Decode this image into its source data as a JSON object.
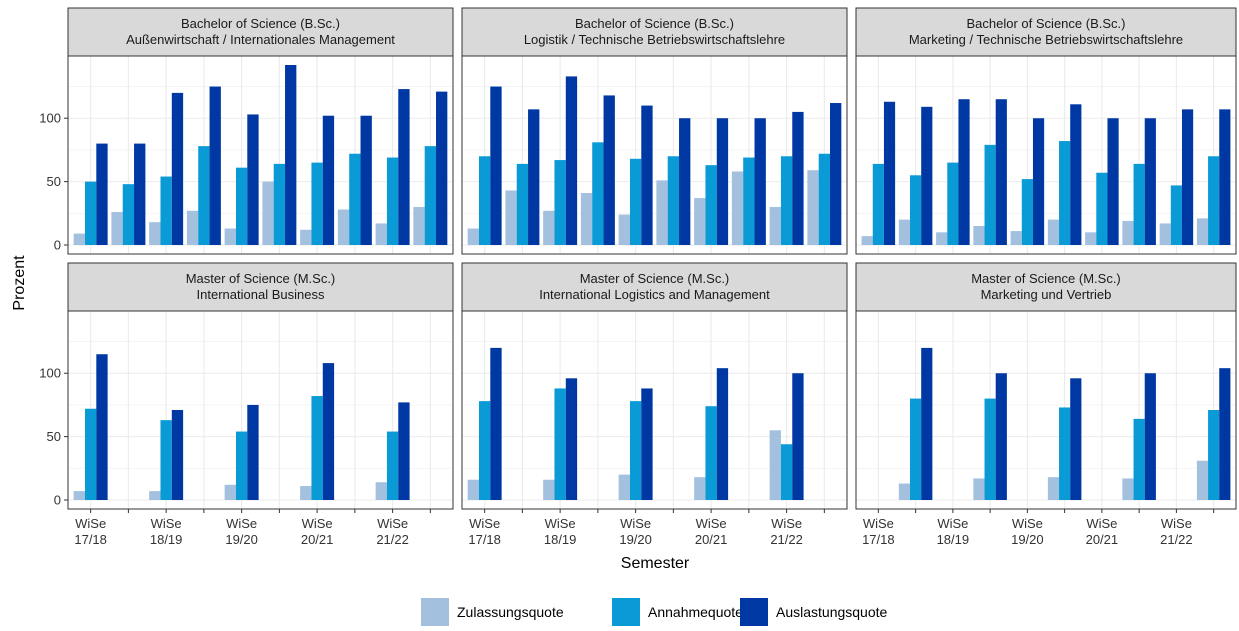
{
  "chart_data": {
    "type": "bar",
    "y_label": "Prozent",
    "x_label": "Semester",
    "categories": [
      "WiSe\n17/18",
      null,
      "WiSe\n18/19",
      null,
      "WiSe\n19/20",
      null,
      "WiSe\n20/21",
      null,
      "WiSe\n21/22",
      null
    ],
    "ylim": [
      -7.1,
      149.1
    ],
    "yticks": [
      0,
      50,
      100
    ],
    "minor_yticks": [
      25,
      75,
      125
    ],
    "grid": true,
    "legend": "bottom",
    "series": [
      {
        "name": "Zulassungsquote",
        "color": "#a3c0df"
      },
      {
        "name": "Annahmequote",
        "color": "#0a9ad6"
      },
      {
        "name": "Auslastungsquote",
        "color": "#0038a3"
      }
    ],
    "facets": [
      {
        "title": [
          "Bachelor of Science (B.Sc.)",
          "Außenwirtschaft / Internationales Management"
        ],
        "values": [
          [
            9,
            26,
            18,
            27,
            13,
            50,
            12,
            28,
            17,
            30
          ],
          [
            50,
            48,
            54,
            78,
            61,
            64,
            65,
            72,
            69,
            78
          ],
          [
            80,
            80,
            120,
            125,
            103,
            142,
            102,
            102,
            123,
            121
          ]
        ]
      },
      {
        "title": [
          "Bachelor of Science (B.Sc.)",
          "Logistik / Technische Betriebswirtschaftslehre"
        ],
        "values": [
          [
            13,
            43,
            27,
            41,
            24,
            51,
            37,
            58,
            30,
            59
          ],
          [
            70,
            64,
            67,
            81,
            68,
            70,
            63,
            69,
            70,
            72
          ],
          [
            125,
            107,
            133,
            118,
            110,
            100,
            100,
            100,
            105,
            112
          ]
        ]
      },
      {
        "title": [
          "Bachelor of Science (B.Sc.)",
          "Marketing / Technische Betriebswirtschaftslehre"
        ],
        "values": [
          [
            7,
            20,
            10,
            15,
            11,
            20,
            10,
            19,
            17,
            21
          ],
          [
            64,
            55,
            65,
            79,
            52,
            82,
            57,
            64,
            47,
            70
          ],
          [
            113,
            109,
            115,
            115,
            100,
            111,
            100,
            100,
            107,
            107
          ]
        ]
      },
      {
        "title": [
          "Master of Science (M.Sc.)",
          "International Business"
        ],
        "values": [
          [
            7,
            null,
            7,
            null,
            12,
            null,
            11,
            null,
            14,
            null
          ],
          [
            72,
            null,
            63,
            null,
            54,
            null,
            82,
            null,
            54,
            null
          ],
          [
            115,
            null,
            71,
            null,
            75,
            null,
            108,
            null,
            77,
            null
          ]
        ]
      },
      {
        "title": [
          "Master of Science (M.Sc.)",
          "International Logistics and Management"
        ],
        "values": [
          [
            16,
            null,
            16,
            null,
            20,
            null,
            18,
            null,
            55,
            null
          ],
          [
            78,
            null,
            88,
            null,
            78,
            null,
            74,
            null,
            44,
            null
          ],
          [
            120,
            null,
            96,
            null,
            88,
            null,
            104,
            null,
            100,
            null
          ]
        ]
      },
      {
        "title": [
          "Master of Science (M.Sc.)",
          "Marketing und Vertrieb"
        ],
        "values": [
          [
            null,
            13,
            null,
            17,
            null,
            18,
            null,
            17,
            null,
            31
          ],
          [
            null,
            80,
            null,
            80,
            null,
            73,
            null,
            64,
            null,
            71
          ],
          [
            null,
            120,
            null,
            100,
            null,
            96,
            null,
            100,
            null,
            104
          ]
        ]
      }
    ]
  }
}
